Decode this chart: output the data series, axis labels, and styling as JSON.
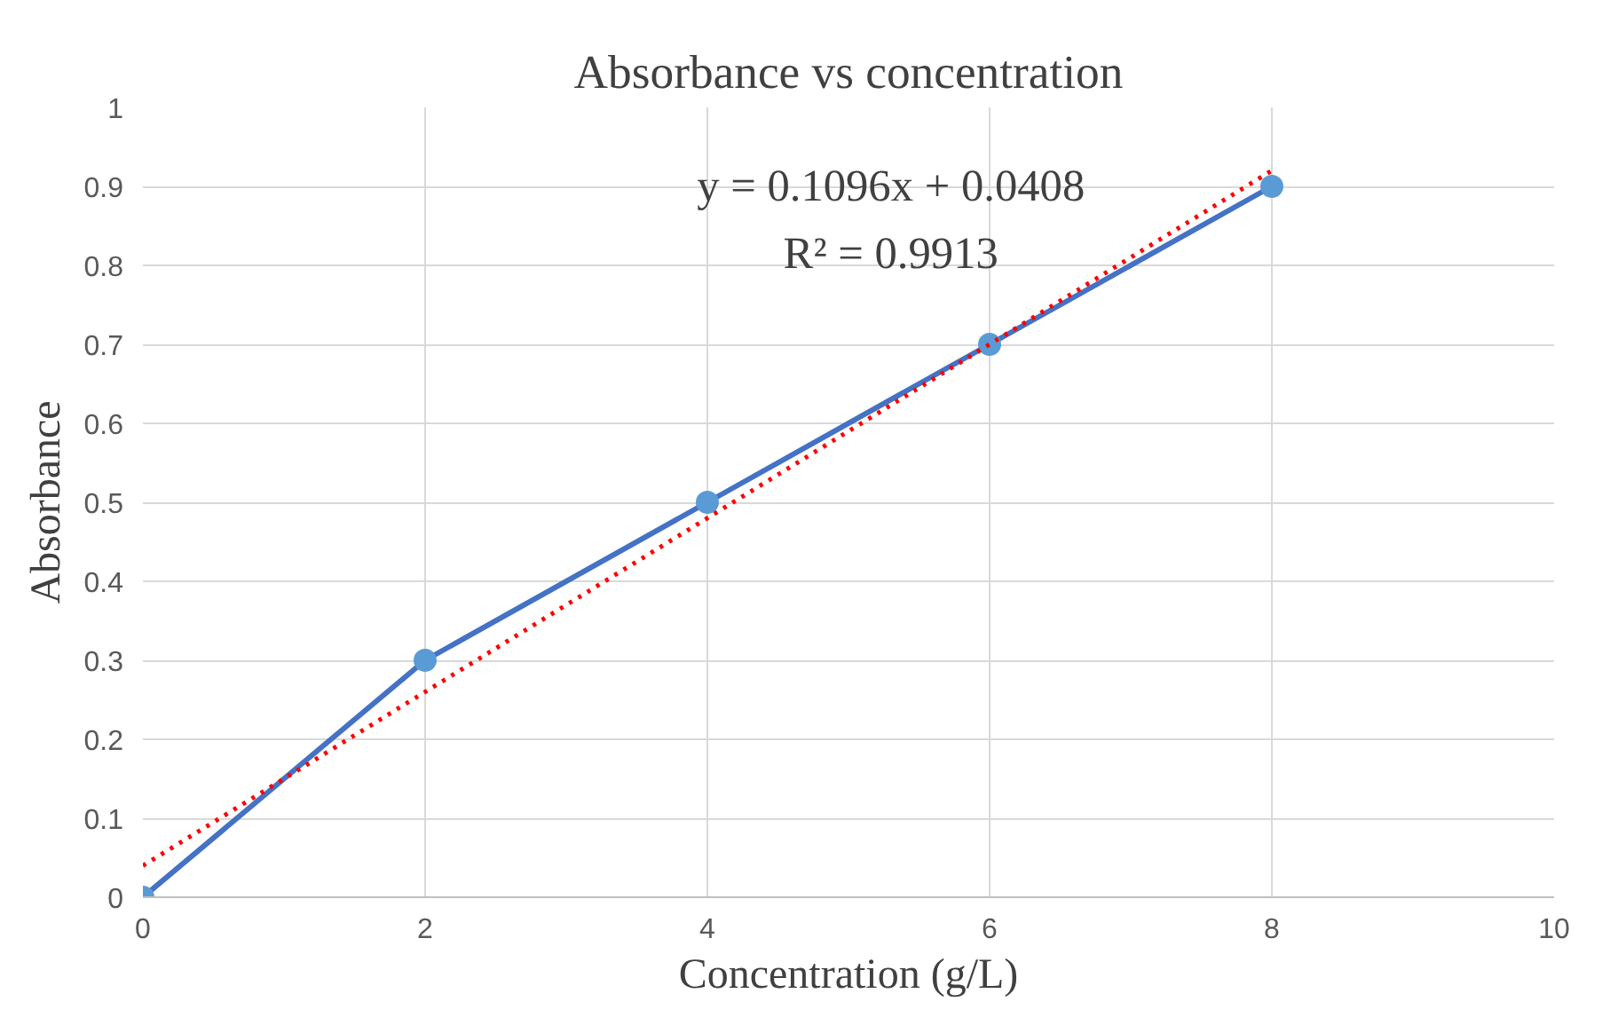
{
  "chart_data": {
    "type": "line",
    "title": "Absorbance vs concentration",
    "xlabel": "Concentration (g/L)",
    "ylabel": "Absorbance",
    "x": [
      0,
      2,
      4,
      6,
      8
    ],
    "series": [
      {
        "color": "#4472c4",
        "marker": "circle",
        "line_style": "solid",
        "values": [
          0,
          0.3,
          0.5,
          0.7,
          0.9
        ]
      },
      {
        "color": "#ff0000",
        "marker": "none",
        "line_style": "dotted",
        "x": [
          0,
          8
        ],
        "values": [
          0.04,
          0.92
        ]
      }
    ],
    "annotations": [
      "y = 0.1096x + 0.0408",
      "R² = 0.9913"
    ],
    "xlim": [
      0,
      10
    ],
    "xticks": [
      0,
      2,
      4,
      6,
      8,
      10
    ],
    "ylim": [
      0,
      1
    ],
    "yticks": [
      0,
      0.1,
      0.2,
      0.3,
      0.4,
      0.5,
      0.6,
      0.7,
      0.8,
      0.9,
      1
    ],
    "grid": true
  }
}
